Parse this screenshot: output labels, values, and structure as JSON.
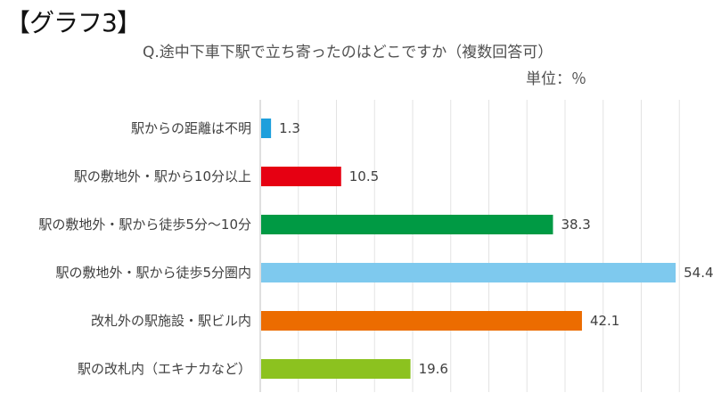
{
  "header": {
    "label": "【グラフ3】"
  },
  "chart_data": {
    "type": "bar",
    "orientation": "horizontal",
    "title": "Q.途中下車下駅で立ち寄ったのはどこですか（複数回答可）",
    "unit": "単位：％",
    "xlim": [
      0,
      55
    ],
    "grid": true,
    "categories": [
      "駅からの距離は不明",
      "駅の敷地外・駅から10分以上",
      "駅の敷地外・駅から徒歩5分〜10分",
      "駅の敷地外・駅から徒歩5分圏内",
      "改札外の駅施設・駅ビル内",
      "駅の改札内（エキナカなど）"
    ],
    "values": [
      1.3,
      10.5,
      38.3,
      54.4,
      42.1,
      19.6
    ],
    "value_labels": [
      "1.3",
      "10.5",
      "38.3",
      "54.4",
      "42.1",
      "19.6"
    ],
    "colors": [
      "#1e9fdc",
      "#e60012",
      "#009a44",
      "#7ec9ee",
      "#ec6c00",
      "#8cc21f"
    ]
  }
}
